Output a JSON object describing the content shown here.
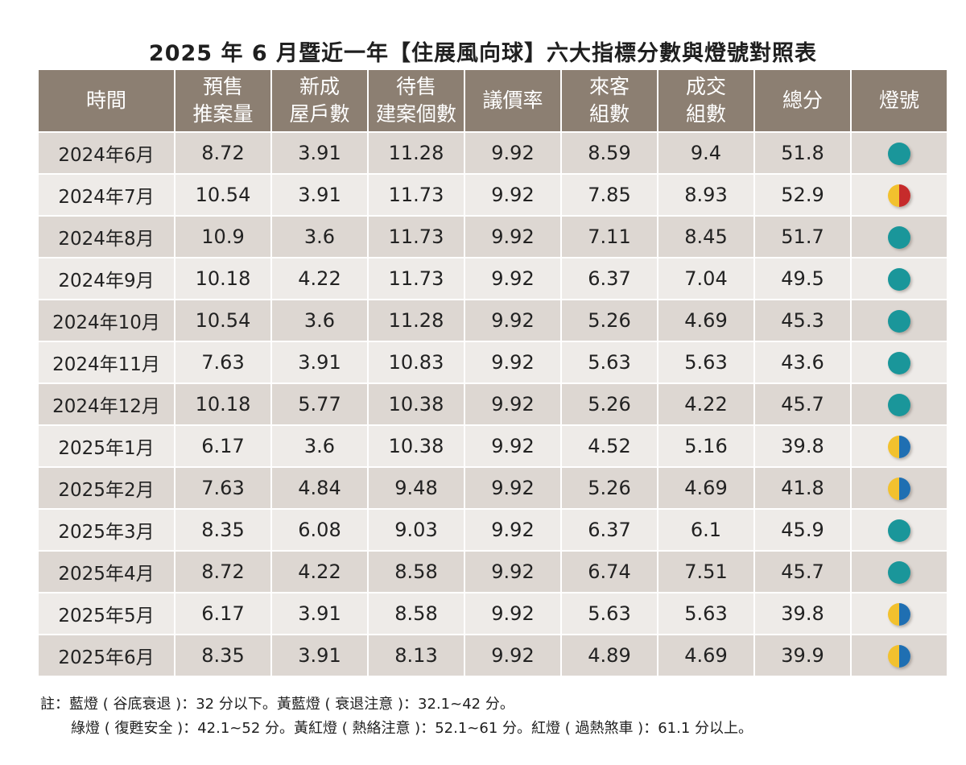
{
  "title": "2025 年 6 月暨近一年【住展風向球】六大指標分數與燈號對照表",
  "colors": {
    "header_bg": "#8c7f72",
    "row_dark": "#ddd7d2",
    "row_light": "#eeebe8",
    "blue": "#1a969a",
    "yellow": "#f2c12e",
    "red": "#c62b2b",
    "deep_blue": "#1f6fb2"
  },
  "table": {
    "headers": [
      {
        "line1": "時間",
        "line2": ""
      },
      {
        "line1": "預售",
        "line2": "推案量"
      },
      {
        "line1": "新成",
        "line2": "屋戶數"
      },
      {
        "line1": "待售",
        "line2": "建案個數"
      },
      {
        "line1": "議價率",
        "line2": ""
      },
      {
        "line1": "來客",
        "line2": "組數"
      },
      {
        "line1": "成交",
        "line2": "組數"
      },
      {
        "line1": "總分",
        "line2": ""
      },
      {
        "line1": "燈號",
        "line2": ""
      }
    ],
    "rows": [
      {
        "period": "2024年6月",
        "presale": "8.72",
        "new_homes": "3.91",
        "pending": "11.28",
        "bargain": "9.92",
        "visitors": "8.59",
        "deals": "9.4",
        "total": "51.8",
        "light": "blue"
      },
      {
        "period": "2024年7月",
        "presale": "10.54",
        "new_homes": "3.91",
        "pending": "11.73",
        "bargain": "9.92",
        "visitors": "7.85",
        "deals": "8.93",
        "total": "52.9",
        "light": "yellow-red"
      },
      {
        "period": "2024年8月",
        "presale": "10.9",
        "new_homes": "3.6",
        "pending": "11.73",
        "bargain": "9.92",
        "visitors": "7.11",
        "deals": "8.45",
        "total": "51.7",
        "light": "blue"
      },
      {
        "period": "2024年9月",
        "presale": "10.18",
        "new_homes": "4.22",
        "pending": "11.73",
        "bargain": "9.92",
        "visitors": "6.37",
        "deals": "7.04",
        "total": "49.5",
        "light": "blue"
      },
      {
        "period": "2024年10月",
        "presale": "10.54",
        "new_homes": "3.6",
        "pending": "11.28",
        "bargain": "9.92",
        "visitors": "5.26",
        "deals": "4.69",
        "total": "45.3",
        "light": "blue"
      },
      {
        "period": "2024年11月",
        "presale": "7.63",
        "new_homes": "3.91",
        "pending": "10.83",
        "bargain": "9.92",
        "visitors": "5.63",
        "deals": "5.63",
        "total": "43.6",
        "light": "blue"
      },
      {
        "period": "2024年12月",
        "presale": "10.18",
        "new_homes": "5.77",
        "pending": "10.38",
        "bargain": "9.92",
        "visitors": "5.26",
        "deals": "4.22",
        "total": "45.7",
        "light": "blue"
      },
      {
        "period": "2025年1月",
        "presale": "6.17",
        "new_homes": "3.6",
        "pending": "10.38",
        "bargain": "9.92",
        "visitors": "4.52",
        "deals": "5.16",
        "total": "39.8",
        "light": "yellow-blue"
      },
      {
        "period": "2025年2月",
        "presale": "7.63",
        "new_homes": "4.84",
        "pending": "9.48",
        "bargain": "9.92",
        "visitors": "5.26",
        "deals": "4.69",
        "total": "41.8",
        "light": "yellow-blue"
      },
      {
        "period": "2025年3月",
        "presale": "8.35",
        "new_homes": "6.08",
        "pending": "9.03",
        "bargain": "9.92",
        "visitors": "6.37",
        "deals": "6.1",
        "total": "45.9",
        "light": "blue"
      },
      {
        "period": "2025年4月",
        "presale": "8.72",
        "new_homes": "4.22",
        "pending": "8.58",
        "bargain": "9.92",
        "visitors": "6.74",
        "deals": "7.51",
        "total": "45.7",
        "light": "blue"
      },
      {
        "period": "2025年5月",
        "presale": "6.17",
        "new_homes": "3.91",
        "pending": "8.58",
        "bargain": "9.92",
        "visitors": "5.63",
        "deals": "5.63",
        "total": "39.8",
        "light": "yellow-blue"
      },
      {
        "period": "2025年6月",
        "presale": "8.35",
        "new_homes": "3.91",
        "pending": "8.13",
        "bargain": "9.92",
        "visitors": "4.89",
        "deals": "4.69",
        "total": "39.9",
        "light": "yellow-blue"
      }
    ]
  },
  "notes": {
    "line1": "註：藍燈 ( 谷底衰退 )：32 分以下。黃藍燈 ( 衰退注意 )：32.1~42 分。",
    "line2": "綠燈 ( 復甦安全 )：42.1~52 分。黃紅燈 ( 熱絡注意 )：52.1~61 分。紅燈 ( 過熱煞車 )：61.1 分以上。"
  }
}
